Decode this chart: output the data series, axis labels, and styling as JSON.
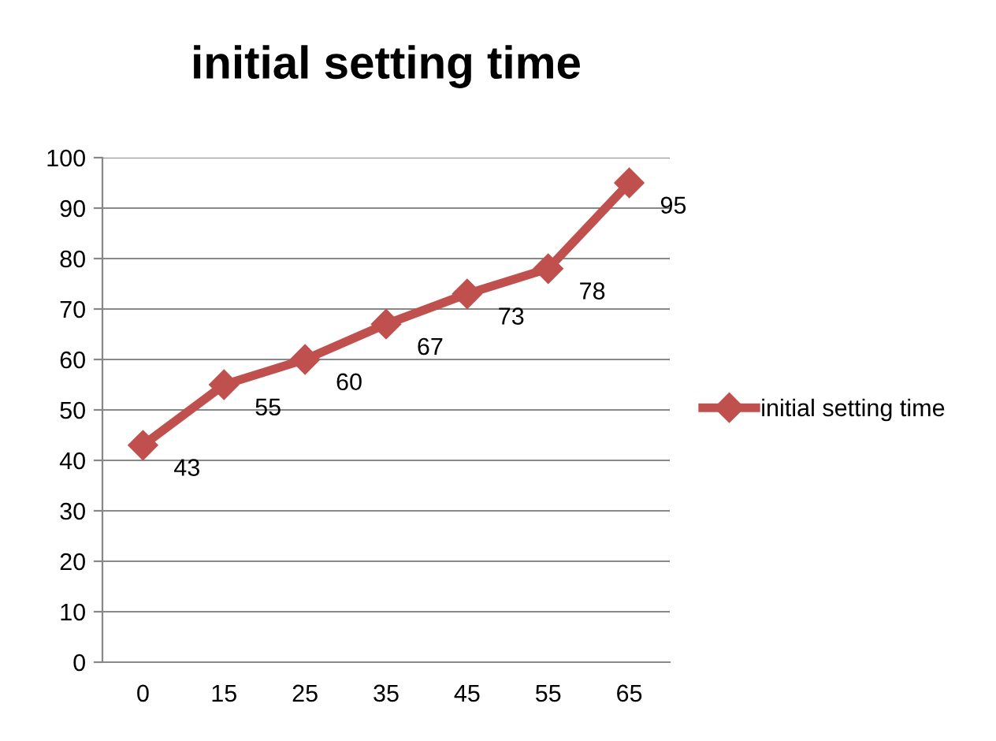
{
  "chart_data": {
    "type": "line",
    "title": "initial setting time",
    "categories": [
      "0",
      "15",
      "25",
      "35",
      "45",
      "55",
      "65"
    ],
    "series": [
      {
        "name": "initial setting time",
        "color": "#c0504d",
        "values": [
          43,
          55,
          60,
          67,
          73,
          78,
          95
        ]
      }
    ],
    "ylim": [
      0,
      100
    ],
    "yticks": [
      0,
      10,
      20,
      30,
      40,
      50,
      60,
      70,
      80,
      90,
      100
    ],
    "grid": "y",
    "legend": "right",
    "marker": "diamond",
    "data_labels": true
  }
}
